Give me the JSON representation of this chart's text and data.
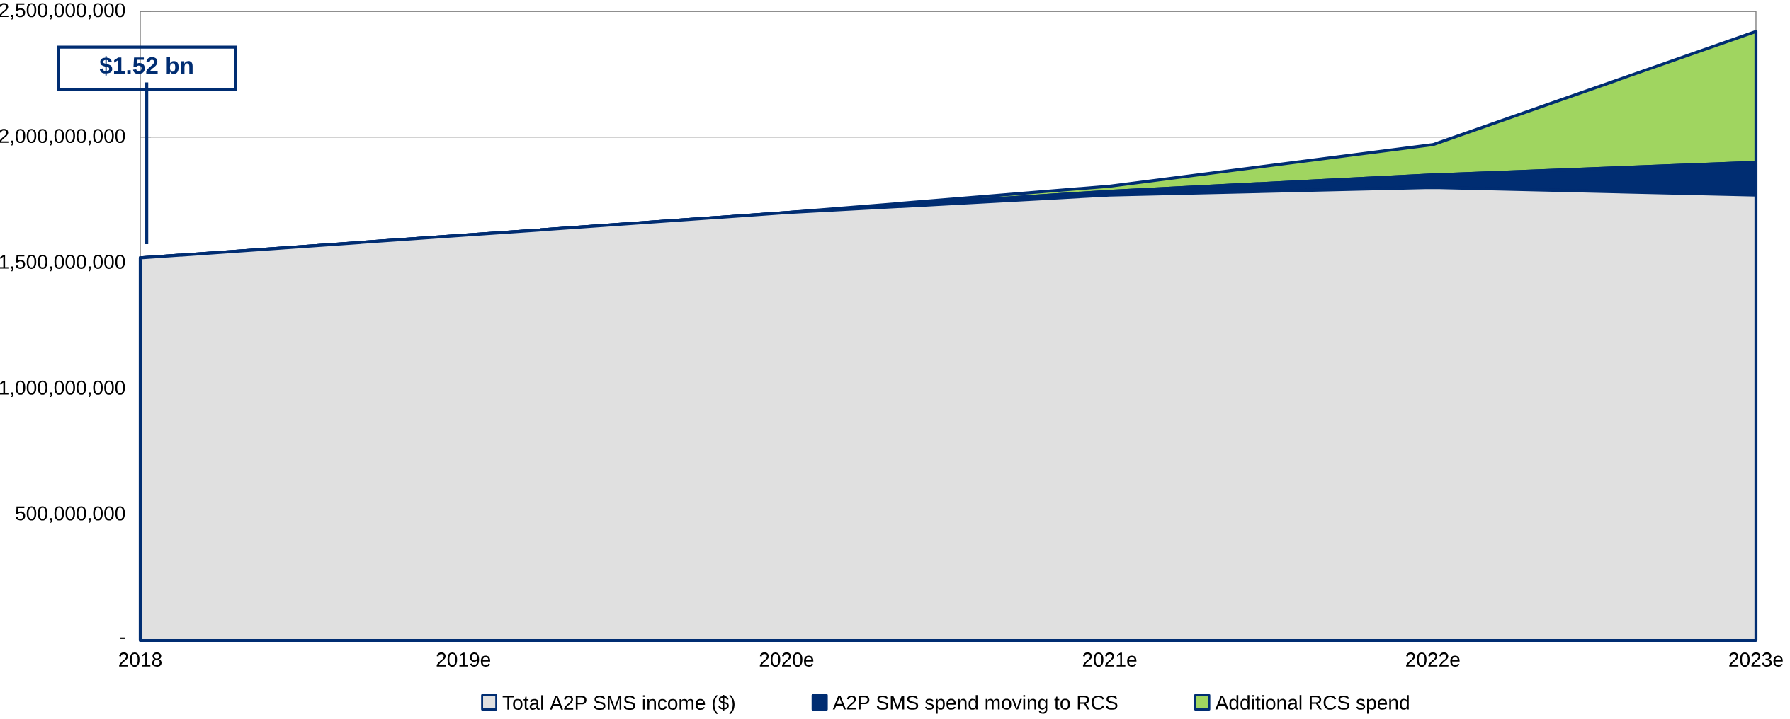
{
  "chart_data": {
    "type": "area",
    "stacked": true,
    "categories": [
      "2018",
      "2019e",
      "2020e",
      "2021e",
      "2022e",
      "2023e"
    ],
    "series": [
      {
        "name": "Total A2P SMS income ($)",
        "color": "#e0e0e0",
        "values": [
          1520000000,
          1610000000,
          1700000000,
          1770000000,
          1800000000,
          1770000000
        ]
      },
      {
        "name": "A2P SMS spend moving to RCS",
        "color": "#002d72",
        "values": [
          0,
          0,
          0,
          15000000,
          50000000,
          130000000
        ]
      },
      {
        "name": "Additional RCS spend",
        "color": "#a0d560",
        "values": [
          0,
          0,
          0,
          20000000,
          120000000,
          520000000
        ]
      }
    ],
    "ylim": [
      0,
      2500000000
    ],
    "yticks": [
      {
        "value": 0,
        "label": "-"
      },
      {
        "value": 500000000,
        "label": "500,000,000"
      },
      {
        "value": 1000000000,
        "label": "1,000,000,000"
      },
      {
        "value": 1500000000,
        "label": "1,500,000,000"
      },
      {
        "value": 2000000000,
        "label": "2,000,000,000"
      },
      {
        "value": 2500000000,
        "label": "2,500,000,000"
      }
    ],
    "grid": "y",
    "legend": "bottom",
    "annotations": [
      "$1.52 bn"
    ]
  }
}
